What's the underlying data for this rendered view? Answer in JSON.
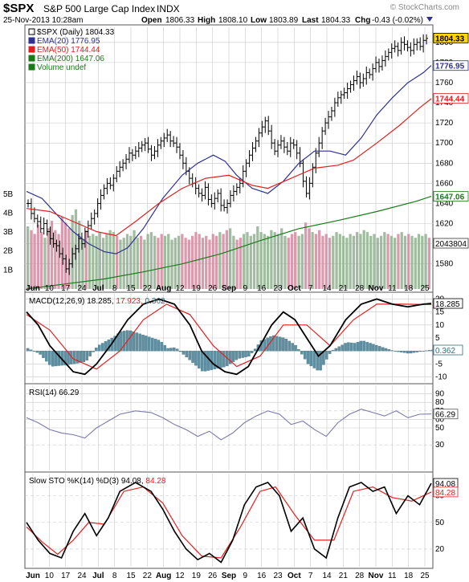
{
  "header": {
    "ticker": "$SPX",
    "name": "S&P 500 Large Cap Index",
    "exchange": "INDX",
    "date": "25-Nov-2013 10:28am",
    "open_label": "Open",
    "open": "1806.33",
    "high_label": "High",
    "high": "1808.10",
    "low_label": "Low",
    "low": "1803.89",
    "last_label": "Last",
    "last": "1804.33",
    "chg_label": "Chg",
    "chg": "-0.43 (-0.02%)",
    "credit": "© StockCharts.com"
  },
  "chart_data": [
    {
      "type": "ohlc",
      "name": "price",
      "legend": [
        {
          "text": "$SPX (Daily) 1804.33",
          "color": "#000000"
        },
        {
          "text": "EMA(20) 1776.95",
          "color": "#2e3192"
        },
        {
          "text": "EMA(50) 1744.44",
          "color": "#e02020"
        },
        {
          "text": "EMA(200) 1647.06",
          "color": "#1a7a1a"
        },
        {
          "text": "Volume undef",
          "color": "#1a7a1a"
        }
      ],
      "ylim": [
        1555,
        1815
      ],
      "yticks": [
        1580,
        1600,
        1620,
        1640,
        1660,
        1680,
        1700,
        1720,
        1740,
        1760,
        1780,
        1800
      ],
      "volume_ticks": [
        "1B",
        "2B",
        "3B",
        "4B",
        "5B"
      ],
      "volume_values_billions": [
        3.3,
        3.1,
        2.9,
        3.4,
        3.0,
        2.7,
        3.2,
        3.6,
        3.1,
        2.9,
        3.8,
        3.5,
        3.2,
        3.9,
        4.2,
        3.6,
        2.6,
        3.1,
        2.8,
        2.9,
        2.8,
        3.0,
        2.7,
        2.9,
        3.1,
        3.0,
        2.8,
        2.6,
        2.7,
        2.9,
        2.8,
        3.1,
        2.7,
        2.8,
        2.6,
        2.9,
        3.0,
        2.8,
        2.7,
        2.9,
        2.8,
        2.9,
        2.6,
        2.7,
        2.8,
        2.9,
        2.7,
        2.6,
        2.8,
        3.0,
        2.9,
        2.7,
        2.8,
        2.6,
        2.9,
        2.8,
        3.0,
        2.9,
        3.1,
        3.2,
        2.8,
        2.6,
        2.7,
        2.9,
        3.0,
        2.8,
        2.9,
        3.3,
        3.0,
        2.9,
        2.8,
        3.1,
        3.0,
        2.9,
        3.2,
        2.8,
        2.7,
        2.9,
        3.0,
        2.8,
        2.9,
        3.5,
        3.2,
        3.0,
        2.9,
        3.1,
        2.8,
        2.9,
        2.7,
        2.8,
        3.0,
        2.9,
        2.8,
        2.7,
        2.9,
        2.8,
        3.0,
        2.9,
        3.1,
        3.0,
        2.8,
        2.9,
        2.7,
        2.8,
        3.0,
        2.9,
        2.8,
        2.7,
        2.9,
        3.0,
        2.8,
        2.9,
        2.8,
        2.7,
        2.9,
        2.8,
        2.9,
        2.7
      ],
      "close": [
        1640,
        1630,
        1625,
        1622,
        1615,
        1620,
        1612,
        1605,
        1600,
        1598,
        1590,
        1585,
        1575,
        1580,
        1590,
        1595,
        1605,
        1600,
        1612,
        1618,
        1625,
        1630,
        1640,
        1648,
        1655,
        1660,
        1658,
        1665,
        1672,
        1676,
        1680,
        1684,
        1690,
        1688,
        1692,
        1695,
        1698,
        1700,
        1694,
        1688,
        1692,
        1698,
        1702,
        1705,
        1708,
        1702,
        1700,
        1696,
        1688,
        1680,
        1672,
        1665,
        1660,
        1655,
        1650,
        1648,
        1656,
        1644,
        1640,
        1645,
        1650,
        1638,
        1636,
        1640,
        1648,
        1652,
        1656,
        1660,
        1672,
        1680,
        1688,
        1695,
        1702,
        1710,
        1716,
        1722,
        1712,
        1700,
        1692,
        1698,
        1702,
        1696,
        1692,
        1700,
        1698,
        1690,
        1680,
        1662,
        1650,
        1660,
        1676,
        1690,
        1700,
        1712,
        1720,
        1726,
        1732,
        1740,
        1745,
        1748,
        1750,
        1754,
        1758,
        1762,
        1766,
        1760,
        1764,
        1770,
        1768,
        1774,
        1780,
        1776,
        1782,
        1786,
        1790,
        1794,
        1796,
        1792,
        1800,
        1798,
        1795,
        1792,
        1798,
        1800,
        1796,
        1802,
        1804
      ],
      "ema20_points": [
        [
          0,
          1652
        ],
        [
          20,
          1645
        ],
        [
          40,
          1628
        ],
        [
          60,
          1612
        ],
        [
          80,
          1600
        ],
        [
          100,
          1592
        ],
        [
          115,
          1590
        ],
        [
          130,
          1596
        ],
        [
          150,
          1615
        ],
        [
          175,
          1645
        ],
        [
          200,
          1668
        ],
        [
          220,
          1680
        ],
        [
          240,
          1688
        ],
        [
          255,
          1682
        ],
        [
          270,
          1668
        ],
        [
          290,
          1655
        ],
        [
          310,
          1650
        ],
        [
          330,
          1662
        ],
        [
          350,
          1680
        ],
        [
          370,
          1692
        ],
        [
          390,
          1692
        ],
        [
          410,
          1688
        ],
        [
          430,
          1705
        ],
        [
          450,
          1728
        ],
        [
          470,
          1745
        ],
        [
          490,
          1760
        ],
        [
          510,
          1770
        ],
        [
          520,
          1777
        ]
      ],
      "ema50_points": [
        [
          0,
          1635
        ],
        [
          30,
          1632
        ],
        [
          60,
          1622
        ],
        [
          90,
          1612
        ],
        [
          115,
          1608
        ],
        [
          140,
          1622
        ],
        [
          170,
          1640
        ],
        [
          200,
          1655
        ],
        [
          230,
          1665
        ],
        [
          260,
          1668
        ],
        [
          290,
          1658
        ],
        [
          310,
          1655
        ],
        [
          340,
          1665
        ],
        [
          370,
          1675
        ],
        [
          400,
          1678
        ],
        [
          420,
          1683
        ],
        [
          450,
          1700
        ],
        [
          480,
          1718
        ],
        [
          505,
          1735
        ],
        [
          520,
          1744
        ]
      ],
      "ema200_points": [
        [
          0,
          1555
        ],
        [
          50,
          1560
        ],
        [
          100,
          1565
        ],
        [
          150,
          1572
        ],
        [
          200,
          1580
        ],
        [
          250,
          1590
        ],
        [
          300,
          1603
        ],
        [
          350,
          1615
        ],
        [
          400,
          1623
        ],
        [
          450,
          1632
        ],
        [
          500,
          1642
        ],
        [
          520,
          1647
        ]
      ],
      "right_labels": [
        {
          "text": "1804.33",
          "value": 1804.33,
          "bg": "#ffd700",
          "fg": "#000000",
          "border": "#000000"
        },
        {
          "text": "1776.95",
          "value": 1776.95,
          "bg": "#ffffff",
          "fg": "#2e3192",
          "border": "#2e3192"
        },
        {
          "text": "1744.44",
          "value": 1744.44,
          "bg": "#ffffff",
          "fg": "#e02020",
          "border": "#e02020"
        },
        {
          "text": "1647.06",
          "value": 1647.06,
          "bg": "#ffffff",
          "fg": "#1a7a1a",
          "border": "#1a7a1a"
        }
      ],
      "volume_right_label": "2043804"
    },
    {
      "type": "line",
      "name": "macd",
      "legend": "MACD(12,26,9) 18.285, 17.923, 0.362",
      "legend_parts": [
        {
          "text": "MACD(12,26,9) 18.285,",
          "color": "#000000"
        },
        {
          "text": " 17.923,",
          "color": "#e02020"
        },
        {
          "text": " 0.362",
          "color": "#2e6f7a"
        }
      ],
      "ylim": [
        -12,
        22
      ],
      "yticks": [
        -10,
        -5,
        0,
        5,
        10,
        15,
        20
      ],
      "macd_points": [
        [
          0,
          15
        ],
        [
          15,
          10
        ],
        [
          30,
          2
        ],
        [
          45,
          -3
        ],
        [
          60,
          -8
        ],
        [
          75,
          -9
        ],
        [
          90,
          -5
        ],
        [
          110,
          3
        ],
        [
          130,
          12
        ],
        [
          150,
          18
        ],
        [
          170,
          20
        ],
        [
          190,
          18
        ],
        [
          210,
          10
        ],
        [
          225,
          0
        ],
        [
          240,
          -5
        ],
        [
          255,
          -8
        ],
        [
          270,
          -9
        ],
        [
          285,
          -6
        ],
        [
          300,
          2
        ],
        [
          315,
          10
        ],
        [
          330,
          15
        ],
        [
          345,
          12
        ],
        [
          360,
          5
        ],
        [
          375,
          -2
        ],
        [
          390,
          2
        ],
        [
          410,
          12
        ],
        [
          430,
          18
        ],
        [
          450,
          20
        ],
        [
          470,
          18
        ],
        [
          490,
          17
        ],
        [
          510,
          18
        ],
        [
          520,
          18.3
        ]
      ],
      "signal_points": [
        [
          0,
          14
        ],
        [
          30,
          8
        ],
        [
          60,
          -3
        ],
        [
          90,
          -7
        ],
        [
          120,
          0
        ],
        [
          150,
          12
        ],
        [
          180,
          18
        ],
        [
          210,
          14
        ],
        [
          240,
          2
        ],
        [
          270,
          -6
        ],
        [
          300,
          -2
        ],
        [
          330,
          10
        ],
        [
          360,
          10
        ],
        [
          390,
          2
        ],
        [
          420,
          12
        ],
        [
          450,
          18
        ],
        [
          480,
          18
        ],
        [
          520,
          17.9
        ]
      ],
      "right_labels": [
        {
          "text": "18.285",
          "value": 18.285,
          "fg": "#000000",
          "border": "#000000"
        },
        {
          "text": "0.362",
          "value": 0.362,
          "fg": "#2e6f7a",
          "border": "#2e6f7a"
        }
      ]
    },
    {
      "type": "line",
      "name": "rsi",
      "legend": "RSI(14) 66.29",
      "ylim": [
        0,
        100
      ],
      "yticks": [
        30,
        50,
        60,
        70,
        80,
        90
      ],
      "points": [
        [
          0,
          62
        ],
        [
          15,
          56
        ],
        [
          30,
          48
        ],
        [
          45,
          44
        ],
        [
          60,
          42
        ],
        [
          75,
          38
        ],
        [
          90,
          50
        ],
        [
          105,
          58
        ],
        [
          120,
          66
        ],
        [
          140,
          70
        ],
        [
          160,
          68
        ],
        [
          175,
          62
        ],
        [
          190,
          54
        ],
        [
          205,
          48
        ],
        [
          220,
          40
        ],
        [
          235,
          46
        ],
        [
          250,
          36
        ],
        [
          265,
          44
        ],
        [
          280,
          56
        ],
        [
          295,
          64
        ],
        [
          310,
          70
        ],
        [
          325,
          66
        ],
        [
          340,
          54
        ],
        [
          355,
          58
        ],
        [
          370,
          48
        ],
        [
          385,
          40
        ],
        [
          400,
          56
        ],
        [
          415,
          66
        ],
        [
          430,
          72
        ],
        [
          445,
          68
        ],
        [
          460,
          64
        ],
        [
          475,
          70
        ],
        [
          490,
          62
        ],
        [
          505,
          66
        ],
        [
          520,
          66.29
        ]
      ],
      "right_labels": [
        {
          "text": "66.29",
          "value": 66.29
        }
      ]
    },
    {
      "type": "line",
      "name": "stochastic",
      "legend_parts": [
        {
          "text": "Slow STO %K(14) %D(3) 94.08,",
          "color": "#000000"
        },
        {
          "text": " 84.28",
          "color": "#e02020"
        }
      ],
      "ylim": [
        0,
        105
      ],
      "yticks": [
        20,
        50,
        80
      ],
      "k_points": [
        [
          0,
          50
        ],
        [
          15,
          30
        ],
        [
          30,
          15
        ],
        [
          45,
          10
        ],
        [
          60,
          40
        ],
        [
          75,
          60
        ],
        [
          90,
          35
        ],
        [
          105,
          55
        ],
        [
          120,
          85
        ],
        [
          140,
          95
        ],
        [
          160,
          85
        ],
        [
          175,
          65
        ],
        [
          190,
          40
        ],
        [
          205,
          20
        ],
        [
          220,
          8
        ],
        [
          235,
          15
        ],
        [
          250,
          5
        ],
        [
          265,
          30
        ],
        [
          280,
          70
        ],
        [
          295,
          90
        ],
        [
          310,
          95
        ],
        [
          325,
          80
        ],
        [
          340,
          40
        ],
        [
          355,
          55
        ],
        [
          370,
          20
        ],
        [
          385,
          10
        ],
        [
          400,
          55
        ],
        [
          415,
          90
        ],
        [
          430,
          95
        ],
        [
          445,
          85
        ],
        [
          460,
          90
        ],
        [
          475,
          60
        ],
        [
          490,
          80
        ],
        [
          505,
          70
        ],
        [
          520,
          94.08
        ]
      ],
      "d_points": [
        [
          0,
          45
        ],
        [
          20,
          28
        ],
        [
          40,
          14
        ],
        [
          60,
          30
        ],
        [
          80,
          50
        ],
        [
          100,
          48
        ],
        [
          125,
          85
        ],
        [
          150,
          90
        ],
        [
          175,
          72
        ],
        [
          200,
          35
        ],
        [
          225,
          12
        ],
        [
          250,
          10
        ],
        [
          275,
          45
        ],
        [
          300,
          85
        ],
        [
          320,
          90
        ],
        [
          345,
          58
        ],
        [
          370,
          30
        ],
        [
          395,
          30
        ],
        [
          420,
          85
        ],
        [
          445,
          90
        ],
        [
          470,
          78
        ],
        [
          495,
          74
        ],
        [
          520,
          84.28
        ]
      ],
      "right_labels": [
        {
          "text": "94.08",
          "value": 94.08,
          "fg": "#000000",
          "border": "#000000"
        },
        {
          "text": "84.28",
          "value": 84.28,
          "fg": "#e02020",
          "border": "#e02020"
        }
      ]
    }
  ],
  "x_axis": {
    "labels": [
      "Jun",
      "10",
      "17",
      "24",
      "Jul",
      "8",
      "15",
      "22",
      "Aug",
      "12",
      "19",
      "26",
      "Sep",
      "9",
      "16",
      "23",
      "Oct",
      "7",
      "14",
      "21",
      "28",
      "Nov",
      "11",
      "18",
      "25"
    ],
    "bold": [
      "Jun",
      "Jul",
      "Aug",
      "Sep",
      "Oct",
      "Nov"
    ]
  },
  "colors": {
    "price": "#000000",
    "ema20": "#2e3192",
    "ema50": "#e02020",
    "ema200": "#1a7a1a",
    "vol_up": "#8fb28f",
    "vol_down": "#d48aa0",
    "histogram": "#5f8fa0",
    "rsi": "#7a7aaa",
    "grid": "#c8c8c8"
  }
}
